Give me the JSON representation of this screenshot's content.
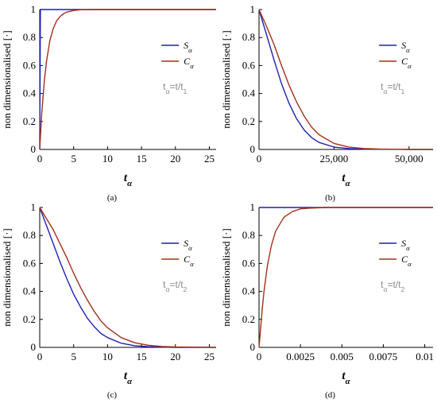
{
  "colors": {
    "s_curve": "#1f1fb5",
    "c_curve": "#a3301a"
  },
  "chart_data": [
    {
      "type": "line",
      "panel_label": "(a)",
      "ylabel": "non dimensionalised [·]",
      "xlabel": "tα",
      "note": "tα=t/t1",
      "xlim": [
        0,
        26
      ],
      "ylim": [
        0,
        1
      ],
      "x_ticks": [
        0,
        5,
        10,
        15,
        20,
        25
      ],
      "x_tick_labels": [
        "0",
        "5",
        "10",
        "15",
        "20",
        "25"
      ],
      "y_ticks": [
        0,
        0.2,
        0.4,
        0.6,
        0.8,
        1
      ],
      "y_tick_labels": [
        "0",
        "0.2",
        "0.4",
        "0.6",
        "0.8",
        "1"
      ],
      "show_y_labels": true,
      "series": [
        {
          "name": "Sα",
          "color": "#1f1fb5",
          "x": [
            0,
            0.1,
            26
          ],
          "y": [
            0,
            1,
            1
          ]
        },
        {
          "name": "Cα",
          "color": "#a3301a",
          "x": [
            0,
            0.3,
            0.7,
            1,
            1.5,
            2,
            2.5,
            3,
            3.5,
            4,
            5,
            6,
            8,
            26
          ],
          "y": [
            0,
            0.26,
            0.5,
            0.63,
            0.78,
            0.865,
            0.92,
            0.95,
            0.97,
            0.982,
            0.993,
            0.998,
            1,
            1
          ]
        }
      ],
      "legend_position": "right"
    },
    {
      "type": "line",
      "panel_label": "(b)",
      "ylabel": "non dimensionalised [·]",
      "xlabel": "tα",
      "note": "tα=t/t1",
      "xlim": [
        0,
        58000
      ],
      "ylim": [
        0,
        1
      ],
      "x_ticks": [
        0,
        25000,
        50000
      ],
      "x_tick_labels": [
        "0",
        "25,000",
        "50,000"
      ],
      "y_ticks": [
        0,
        0.2,
        0.4,
        0.6,
        0.8,
        1
      ],
      "y_tick_labels": [
        "0",
        "0.2",
        "0.4",
        "0.6",
        "0.8",
        "1"
      ],
      "show_y_labels": false,
      "series": [
        {
          "name": "Sα",
          "color": "#1f1fb5",
          "x": [
            0,
            2500,
            5000,
            7500,
            10000,
            12500,
            15000,
            17500,
            20000,
            25000,
            30000,
            35000,
            40000,
            50000,
            58000
          ],
          "y": [
            1,
            0.82,
            0.64,
            0.47,
            0.33,
            0.22,
            0.14,
            0.085,
            0.05,
            0.017,
            0.006,
            0.002,
            0.001,
            0,
            0
          ]
        },
        {
          "name": "Cα",
          "color": "#a3301a",
          "x": [
            0,
            2500,
            5000,
            7500,
            10000,
            12500,
            15000,
            17500,
            20000,
            25000,
            30000,
            35000,
            40000,
            50000,
            58000
          ],
          "y": [
            1,
            0.88,
            0.75,
            0.6,
            0.46,
            0.34,
            0.24,
            0.16,
            0.105,
            0.043,
            0.017,
            0.007,
            0.003,
            0,
            0
          ]
        }
      ],
      "legend_position": "right"
    },
    {
      "type": "line",
      "panel_label": "(c)",
      "ylabel": "non dimensionalised [·]",
      "xlabel": "tα",
      "note": "tα=t/t2",
      "xlim": [
        0,
        26
      ],
      "ylim": [
        0,
        1
      ],
      "x_ticks": [
        0,
        5,
        10,
        15,
        20,
        25
      ],
      "x_tick_labels": [
        "0",
        "5",
        "10",
        "15",
        "20",
        "25"
      ],
      "y_ticks": [
        0,
        0.2,
        0.4,
        0.6,
        0.8,
        1
      ],
      "y_tick_labels": [
        "0",
        "0.2",
        "0.4",
        "0.6",
        "0.8",
        "1"
      ],
      "show_y_labels": true,
      "series": [
        {
          "name": "Sα",
          "color": "#1f1fb5",
          "x": [
            0,
            1,
            2,
            3,
            4,
            5,
            6,
            7,
            8,
            9,
            10,
            12,
            14,
            16,
            18,
            20,
            26
          ],
          "y": [
            1,
            0.87,
            0.74,
            0.61,
            0.49,
            0.38,
            0.29,
            0.21,
            0.15,
            0.1,
            0.07,
            0.03,
            0.012,
            0.005,
            0.002,
            0,
            0
          ]
        },
        {
          "name": "Cα",
          "color": "#a3301a",
          "x": [
            0,
            1,
            2,
            3,
            4,
            5,
            6,
            7,
            8,
            9,
            10,
            12,
            14,
            16,
            18,
            20,
            26
          ],
          "y": [
            1,
            0.92,
            0.84,
            0.74,
            0.64,
            0.53,
            0.43,
            0.34,
            0.26,
            0.19,
            0.14,
            0.07,
            0.033,
            0.015,
            0.007,
            0.003,
            0
          ]
        }
      ],
      "legend_position": "right"
    },
    {
      "type": "line",
      "panel_label": "(d)",
      "ylabel": "non dimensionalised [·]",
      "xlabel": "tα",
      "note": "tα=t/t2",
      "xlim": [
        0,
        0.0105
      ],
      "ylim": [
        0,
        1
      ],
      "x_ticks": [
        0,
        0.0025,
        0.005,
        0.0075,
        0.01
      ],
      "x_tick_labels": [
        "0",
        "0.0025",
        "0.005",
        "0.0075",
        "0.01"
      ],
      "y_ticks": [
        0,
        0.2,
        0.4,
        0.6,
        0.8,
        1
      ],
      "y_tick_labels": [
        "0",
        "0.2",
        "0.4",
        "0.6",
        "0.8",
        "1"
      ],
      "show_y_labels": true,
      "series": [
        {
          "name": "Sα",
          "color": "#1f1fb5",
          "x": [
            0,
            0.0105
          ],
          "y": [
            1,
            1
          ]
        },
        {
          "name": "Cα",
          "color": "#a3301a",
          "x": [
            0,
            0.0001,
            0.0002,
            0.0003,
            0.0005,
            0.00075,
            0.001,
            0.0015,
            0.002,
            0.0025,
            0.003,
            0.004,
            0.0105
          ],
          "y": [
            0,
            0.14,
            0.28,
            0.4,
            0.58,
            0.73,
            0.83,
            0.93,
            0.97,
            0.99,
            0.995,
            1,
            1
          ]
        }
      ],
      "legend_position": "right"
    }
  ]
}
